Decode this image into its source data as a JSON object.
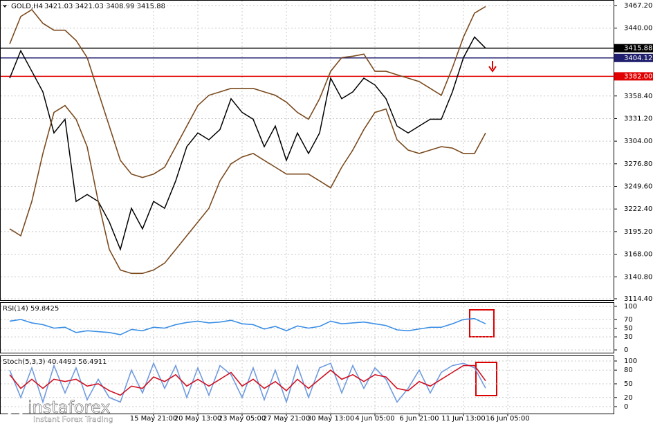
{
  "chart_data": [
    {
      "type": "line",
      "title": "GOLD,H4",
      "quote": "3421.03 3421.03 3408.99 3415.88",
      "categories": [
        null,
        null,
        null,
        null,
        null,
        null,
        null,
        null,
        null,
        null,
        null,
        null,
        null,
        "15 May 21:00",
        null,
        null,
        null,
        "20 May 13:00",
        null,
        null,
        null,
        "23 May 05:00",
        null,
        null,
        null,
        "27 May 21:00",
        null,
        null,
        null,
        "30 May 13:00",
        null,
        null,
        null,
        "4 Jun 05:00",
        null,
        null,
        null,
        "6 Jun 21:00",
        null,
        null,
        null,
        "11 Jun 13:00",
        null,
        null,
        null,
        "16 Jun 05:00"
      ],
      "series": [
        {
          "color": "#000000",
          "values": [
            3379.8,
            3412.8,
            3388.1,
            3363.3,
            3313.9,
            3330.4,
            3231.5,
            3239.8,
            3231.5,
            3206.8,
            3173.8,
            3223.3,
            3198.5,
            3231.5,
            3223.3,
            3256.2,
            3297.4,
            3313.9,
            3305.7,
            3318.0,
            3355.1,
            3338.6,
            3330.4,
            3297.4,
            3322.2,
            3280.9,
            3313.9,
            3289.2,
            3313.9,
            3379.8,
            3355.1,
            3363.3,
            3379.8,
            3371.6,
            3355.1,
            3322.2,
            3313.9,
            3322.2,
            3330.4,
            3330.4,
            3363.3,
            3404.5,
            3429.3,
            3415.88,
            null,
            null
          ]
        },
        {
          "color": "#7b4a1e",
          "values": [
            3421.0,
            3454.0,
            3462.3,
            3445.8,
            3437.5,
            3437.5,
            3425.2,
            3404.6,
            3363.3,
            3322.1,
            3280.9,
            3264.4,
            3260.3,
            3264.4,
            3272.7,
            3297.4,
            3322.1,
            3346.9,
            3359.2,
            3363.3,
            3367.5,
            3367.5,
            3367.5,
            3363.3,
            3359.2,
            3351.0,
            3338.6,
            3330.4,
            3355.1,
            3388.1,
            3404.6,
            3406.2,
            3408.7,
            3388.1,
            3388.1,
            3383.9,
            3379.8,
            3375.7,
            3367.5,
            3359.2,
            3392.2,
            3429.3,
            3458.1,
            3466.0,
            null,
            null
          ]
        },
        {
          "color": "#7b4a1e",
          "values": [
            3198.5,
            3190.2,
            3231.5,
            3289.2,
            3338.6,
            3346.9,
            3330.4,
            3297.4,
            3231.5,
            3173.7,
            3149.0,
            3144.9,
            3144.9,
            3149.0,
            3157.3,
            3173.7,
            3190.2,
            3206.7,
            3223.2,
            3256.2,
            3276.8,
            3285.0,
            3289.2,
            3280.9,
            3272.7,
            3264.4,
            3264.4,
            3264.4,
            3256.2,
            3247.9,
            3272.7,
            3293.3,
            3318.0,
            3338.6,
            3342.7,
            3305.6,
            3293.3,
            3289.2,
            3293.3,
            3297.4,
            3295.7,
            3289.2,
            3289.2,
            3313.9,
            null,
            null
          ]
        }
      ],
      "ylim": [
        3114.4,
        3467.2
      ],
      "yticks": [
        {
          "value": 3114.4,
          "label": "3114.40"
        },
        {
          "value": 3140.8,
          "label": "3140.80"
        },
        {
          "value": 3168,
          "label": "3168.00"
        },
        {
          "value": 3195.2,
          "label": "3195.20"
        },
        {
          "value": 3222.4,
          "label": "3222.40"
        },
        {
          "value": 3249.6,
          "label": "3249.60"
        },
        {
          "value": 3276.8,
          "label": "3276.80"
        },
        {
          "value": 3304,
          "label": "3304.00"
        },
        {
          "value": 3331.2,
          "label": "3331.20"
        },
        {
          "value": 3358.4,
          "label": "3358.40"
        },
        {
          "value": 3440,
          "label": "3440.00"
        },
        {
          "value": 3467.2,
          "label": "3467.20"
        }
      ],
      "levels": [
        {
          "value": 3415.88,
          "label": "3415.88",
          "color": "#000000"
        },
        {
          "value": 3404.12,
          "label": "3404.12",
          "color": "#1f1f6e"
        },
        {
          "value": 3382,
          "label": "3382.00",
          "color": "#e00000"
        }
      ],
      "grid": true
    },
    {
      "type": "line",
      "title": "RSI(14) 59.8425",
      "series": [
        {
          "color": "#3a8ee6",
          "values": [
            66,
            70,
            62,
            58,
            50,
            52,
            40,
            44,
            42,
            40,
            35,
            47,
            44,
            52,
            50,
            58,
            63,
            66,
            62,
            64,
            68,
            60,
            58,
            48,
            54,
            44,
            55,
            50,
            54,
            66,
            60,
            62,
            64,
            60,
            56,
            46,
            44,
            48,
            52,
            52,
            60,
            70,
            72,
            60
          ]
        }
      ],
      "ylim": [
        0,
        100
      ],
      "yticks": [
        0,
        30,
        50,
        70,
        100
      ],
      "grid": true
    },
    {
      "type": "line",
      "title": "Stoch(5,3,3) 40.4493 56.4911",
      "series": [
        {
          "color": "#6f9be0",
          "values": [
            80,
            20,
            85,
            10,
            90,
            30,
            85,
            15,
            60,
            20,
            10,
            80,
            30,
            95,
            40,
            90,
            20,
            85,
            25,
            90,
            70,
            20,
            85,
            15,
            80,
            10,
            90,
            20,
            85,
            95,
            30,
            90,
            40,
            85,
            60,
            10,
            40,
            80,
            30,
            75,
            90,
            95,
            85,
            40.4493
          ]
        },
        {
          "color": "#d01020",
          "values": [
            70,
            40,
            60,
            40,
            60,
            55,
            60,
            45,
            50,
            35,
            25,
            45,
            40,
            65,
            55,
            70,
            45,
            60,
            45,
            60,
            75,
            45,
            60,
            40,
            55,
            35,
            60,
            40,
            60,
            80,
            60,
            70,
            55,
            70,
            65,
            40,
            35,
            55,
            45,
            60,
            75,
            90,
            90,
            56.4911
          ]
        }
      ],
      "ylim": [
        0,
        100
      ],
      "yticks": [
        0,
        20,
        50,
        80,
        100
      ],
      "grid": true
    }
  ],
  "brand": {
    "name": "instaforex",
    "tagline": "Instant Forex Trading"
  }
}
